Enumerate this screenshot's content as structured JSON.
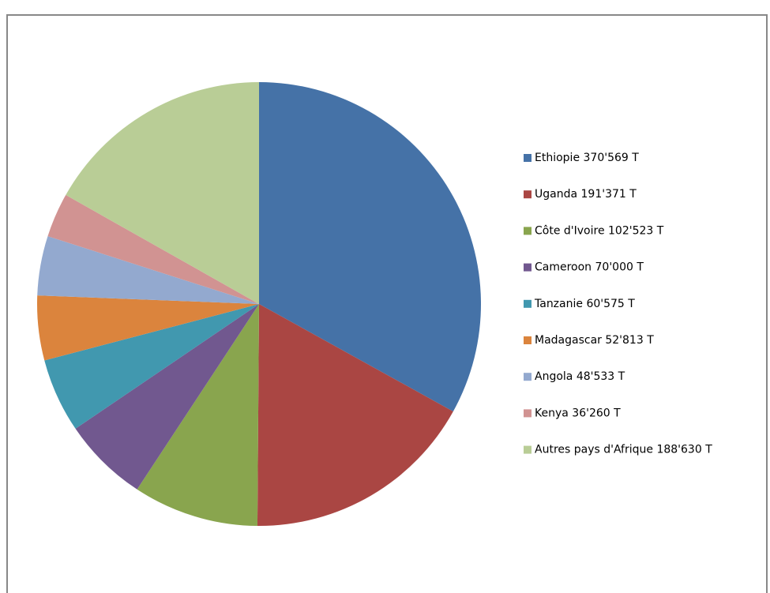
{
  "chart_data": {
    "type": "pie",
    "categories": [
      "Ethiopie 370'569 T",
      "Uganda 191'371 T",
      "Côte d'Ivoire 102'523 T",
      "Cameroon 70'000 T",
      "Tanzanie 60'575 T",
      "Madagascar 52'813 T",
      "Angola 48'533 T",
      "Kenya 36'260 T",
      "Autres pays d'Afrique 188'630 T"
    ],
    "values": [
      370569,
      191371,
      102523,
      70000,
      60575,
      52813,
      48533,
      36260,
      188630
    ],
    "colors": [
      "#4572a7",
      "#aa4643",
      "#89a54e",
      "#71588f",
      "#4198af",
      "#db843d",
      "#93a9cf",
      "#d19392",
      "#b9cd96"
    ],
    "legend": "right"
  }
}
